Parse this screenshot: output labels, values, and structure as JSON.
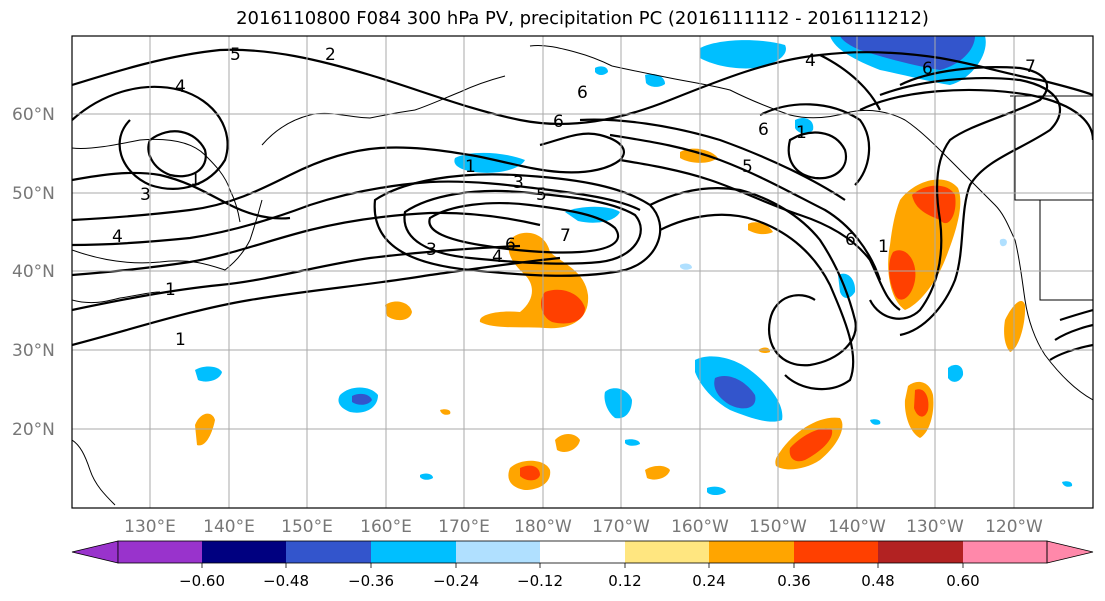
{
  "title": "2016110800 F084 300 hPa PV, precipitation PC (2016111112 - 2016111212)",
  "lat_labels": [
    "60°N",
    "50°N",
    "40°N",
    "30°N",
    "20°N"
  ],
  "lon_labels": [
    "130°E",
    "140°E",
    "150°E",
    "160°E",
    "170°E",
    "180°W",
    "170°W",
    "160°W",
    "150°W",
    "140°W",
    "130°W",
    "120°W"
  ],
  "colorbar": {
    "ticks": [
      "−0.60",
      "−0.48",
      "−0.36",
      "−0.24",
      "−0.12",
      "0.12",
      "0.24",
      "0.36",
      "0.48",
      "0.60"
    ],
    "colors": [
      "#9933cc",
      "#000080",
      "#3355cc",
      "#00bfff",
      "#b0e0ff",
      "#ffffff",
      "#ffe680",
      "#ffa500",
      "#ff4000",
      "#b22222",
      "#ff88aa"
    ]
  },
  "contour_labels": [
    "5",
    "2",
    "4",
    "1",
    "3",
    "4",
    "1",
    "1",
    "6",
    "6",
    "1",
    "3",
    "5",
    "7",
    "6",
    "4",
    "3",
    "4",
    "6",
    "1",
    "5",
    "6",
    "6",
    "7",
    "1"
  ],
  "fill_colors": {
    "light_blue": "#b0e0ff",
    "blue": "#00bfff",
    "dark_blue": "#3355cc",
    "yellow": "#ffe680",
    "orange": "#ffa500",
    "red_orange": "#ff4000",
    "dark_red": "#b22222"
  },
  "contour_color": "#000000",
  "grid_color": "#aaaaaa"
}
